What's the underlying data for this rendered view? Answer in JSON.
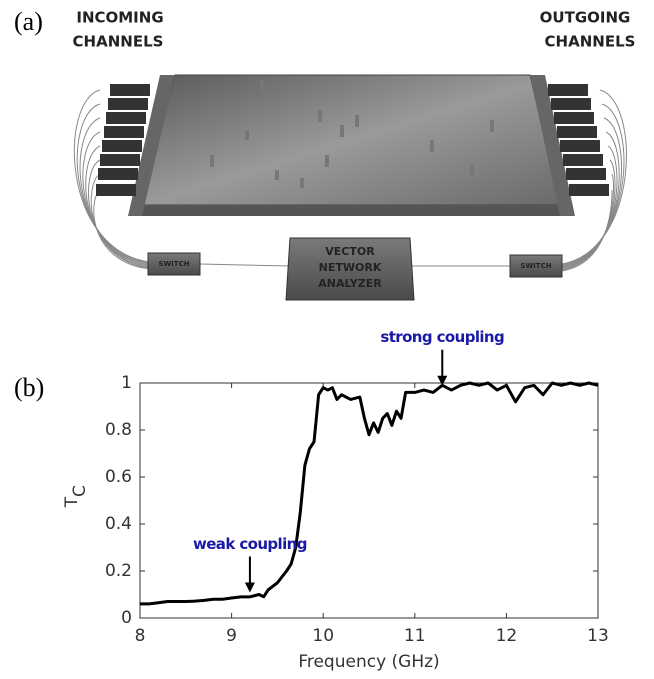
{
  "diagram": {
    "panel_label": "(a)",
    "incoming_label": [
      "INCOMING",
      "CHANNELS"
    ],
    "outgoing_label": [
      "OUTGOING",
      "CHANNELS"
    ],
    "switch_left": "SWITCH",
    "switch_right": "SWITCH",
    "analyzer_label": [
      "VECTOR",
      "NETWORK",
      "ANALYZER"
    ]
  },
  "chart_data": {
    "type": "line",
    "panel_label": "(b)",
    "xlabel": "Frequency (GHz)",
    "ylabel": "T",
    "ylabel_sub": "C",
    "color": "#000000",
    "x": [
      8.0,
      8.1,
      8.2,
      8.3,
      8.4,
      8.5,
      8.6,
      8.7,
      8.8,
      8.9,
      9.0,
      9.1,
      9.2,
      9.3,
      9.35,
      9.4,
      9.5,
      9.6,
      9.65,
      9.7,
      9.75,
      9.8,
      9.85,
      9.9,
      9.95,
      10.0,
      10.05,
      10.1,
      10.15,
      10.2,
      10.3,
      10.4,
      10.45,
      10.5,
      10.55,
      10.6,
      10.65,
      10.7,
      10.75,
      10.8,
      10.85,
      10.9,
      11.0,
      11.1,
      11.2,
      11.3,
      11.4,
      11.5,
      11.6,
      11.7,
      11.8,
      11.9,
      12.0,
      12.1,
      12.2,
      12.3,
      12.4,
      12.5,
      12.6,
      12.7,
      12.8,
      12.9,
      13.0
    ],
    "values": [
      0.06,
      0.06,
      0.065,
      0.07,
      0.07,
      0.07,
      0.072,
      0.075,
      0.08,
      0.08,
      0.085,
      0.09,
      0.09,
      0.1,
      0.09,
      0.12,
      0.15,
      0.2,
      0.23,
      0.3,
      0.45,
      0.65,
      0.72,
      0.75,
      0.95,
      0.98,
      0.97,
      0.98,
      0.93,
      0.95,
      0.93,
      0.94,
      0.85,
      0.78,
      0.83,
      0.79,
      0.85,
      0.87,
      0.82,
      0.88,
      0.85,
      0.96,
      0.96,
      0.97,
      0.96,
      0.99,
      0.97,
      0.99,
      1.0,
      0.99,
      1.0,
      0.97,
      0.99,
      0.92,
      0.98,
      0.99,
      0.95,
      1.0,
      0.99,
      1.0,
      0.99,
      1.0,
      0.99
    ],
    "xlim": [
      8,
      13
    ],
    "ylim": [
      0,
      1
    ],
    "xticks": [
      8,
      9,
      10,
      11,
      12,
      13
    ],
    "yticks": [
      0,
      0.2,
      0.4,
      0.6,
      0.8,
      1
    ],
    "annotations": [
      {
        "text": "strong coupling",
        "x": 11.3,
        "y": 0.98
      },
      {
        "text": "weak coupling",
        "x": 9.2,
        "y": 0.1
      }
    ]
  }
}
